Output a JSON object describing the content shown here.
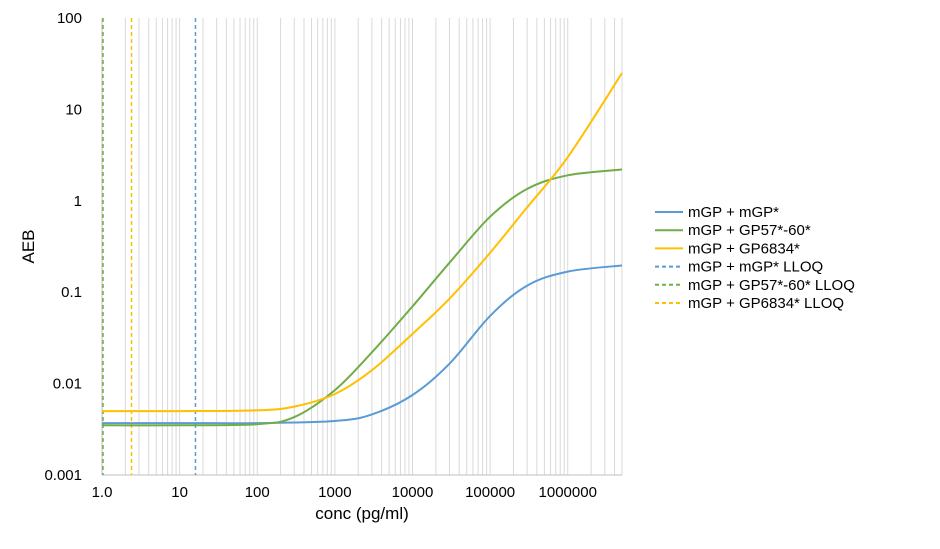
{
  "chart_data": {
    "type": "line",
    "title": "",
    "xlabel": "conc (pg/ml)",
    "ylabel": "AEB",
    "x_scale": "log",
    "y_scale": "log",
    "xlim": [
      1,
      5000000
    ],
    "ylim": [
      0.001,
      100
    ],
    "x_ticks": [
      {
        "value": 1,
        "label": "1.0"
      },
      {
        "value": 10,
        "label": "10"
      },
      {
        "value": 100,
        "label": "100"
      },
      {
        "value": 1000,
        "label": "1000"
      },
      {
        "value": 10000,
        "label": "10000"
      },
      {
        "value": 100000,
        "label": "100000"
      },
      {
        "value": 1000000,
        "label": "1000000"
      }
    ],
    "y_ticks": [
      {
        "value": 0.001,
        "label": "0.001"
      },
      {
        "value": 0.01,
        "label": "0.01"
      },
      {
        "value": 0.1,
        "label": "0.1"
      },
      {
        "value": 1,
        "label": "1"
      },
      {
        "value": 10,
        "label": "10"
      },
      {
        "value": 100,
        "label": "100"
      }
    ],
    "grid": {
      "vertical_minor": true,
      "horizontal": false
    },
    "legend_position": "right",
    "series": [
      {
        "name": "mGP + mGP*",
        "color": "#5b9bd5",
        "style": "solid",
        "x": [
          1,
          10,
          100,
          1000,
          3000,
          10000,
          30000,
          100000,
          300000,
          1000000,
          5000000
        ],
        "y": [
          0.0037,
          0.0037,
          0.0037,
          0.0039,
          0.0046,
          0.0075,
          0.0165,
          0.055,
          0.118,
          0.168,
          0.196
        ]
      },
      {
        "name": "mGP + GP57*-60*",
        "color": "#70ad47",
        "style": "solid",
        "x": [
          1,
          10,
          100,
          300,
          1000,
          3000,
          10000,
          30000,
          100000,
          300000,
          1000000,
          5000000
        ],
        "y": [
          0.0035,
          0.0035,
          0.0036,
          0.0043,
          0.0085,
          0.022,
          0.07,
          0.21,
          0.67,
          1.35,
          1.9,
          2.2
        ]
      },
      {
        "name": "mGP + GP6834*",
        "color": "#ffc000",
        "style": "solid",
        "x": [
          1,
          10,
          100,
          300,
          1000,
          3000,
          10000,
          30000,
          100000,
          300000,
          1000000,
          5000000
        ],
        "y": [
          0.005,
          0.005,
          0.0051,
          0.0056,
          0.0077,
          0.014,
          0.035,
          0.085,
          0.27,
          0.85,
          3.0,
          25
        ]
      },
      {
        "name": "mGP + mGP* LLOQ",
        "color": "#5b9bd5",
        "style": "dashed",
        "x_value": 16
      },
      {
        "name": "mGP + GP57*-60* LLOQ",
        "color": "#70ad47",
        "style": "dashed",
        "x_value": 1.03
      },
      {
        "name": "mGP + GP6834* LLOQ",
        "color": "#ffc000",
        "style": "dashed",
        "x_value": 2.4
      }
    ]
  }
}
